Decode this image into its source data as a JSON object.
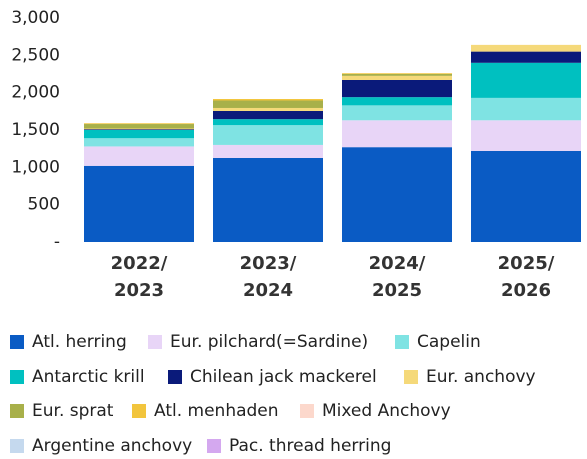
{
  "chart_data": {
    "type": "stacked_bar",
    "categories": [
      "2022/\n2023",
      "2023/\n2024",
      "2024/\n2025",
      "2025/\n2026"
    ],
    "ylim": [
      0,
      3000
    ],
    "yticks": [
      {
        "value": 0,
        "label": "-"
      },
      500,
      {
        "value": 1000,
        "label": "1,000"
      },
      {
        "value": 1500,
        "label": "1,500"
      },
      {
        "value": 2000,
        "label": "2,000"
      },
      {
        "value": 2500,
        "label": "2,500"
      },
      {
        "value": 3000,
        "label": "3,000"
      }
    ],
    "series": [
      {
        "name": "Atl. herring",
        "color": "#0a5bc4",
        "values": [
          1020,
          1125,
          1270,
          1220
        ]
      },
      {
        "name": "Eur. pilchard(=Sardine)",
        "color": "#e8d5f7",
        "values": [
          260,
          175,
          360,
          410
        ]
      },
      {
        "name": "Capelin",
        "color": "#7fe3e3",
        "values": [
          110,
          265,
          200,
          300
        ]
      },
      {
        "name": "Antarctic krill",
        "color": "#00c0c0",
        "values": [
          110,
          80,
          110,
          470
        ]
      },
      {
        "name": "Chilean jack mackerel",
        "color": "#0a1a7a",
        "values": [
          10,
          110,
          230,
          150
        ]
      },
      {
        "name": "Eur. anchovy",
        "color": "#f5d97a",
        "values": [
          10,
          40,
          55,
          90
        ]
      },
      {
        "name": "Eur. sprat",
        "color": "#a8b04a",
        "values": [
          60,
          100,
          25,
          0
        ]
      },
      {
        "name": "Atl. menhaden",
        "color": "#f2c53d",
        "values": [
          10,
          20,
          10,
          0
        ]
      },
      {
        "name": "Mixed Anchovy",
        "color": "#fcd8cc",
        "values": [
          0,
          0,
          0,
          0
        ]
      },
      {
        "name": "Argentine anchovy",
        "color": "#c5d9ee",
        "values": [
          0,
          0,
          0,
          0
        ]
      },
      {
        "name": "Pac. thread herring",
        "color": "#d4a8ef",
        "values": [
          0,
          0,
          0,
          0
        ]
      }
    ]
  }
}
